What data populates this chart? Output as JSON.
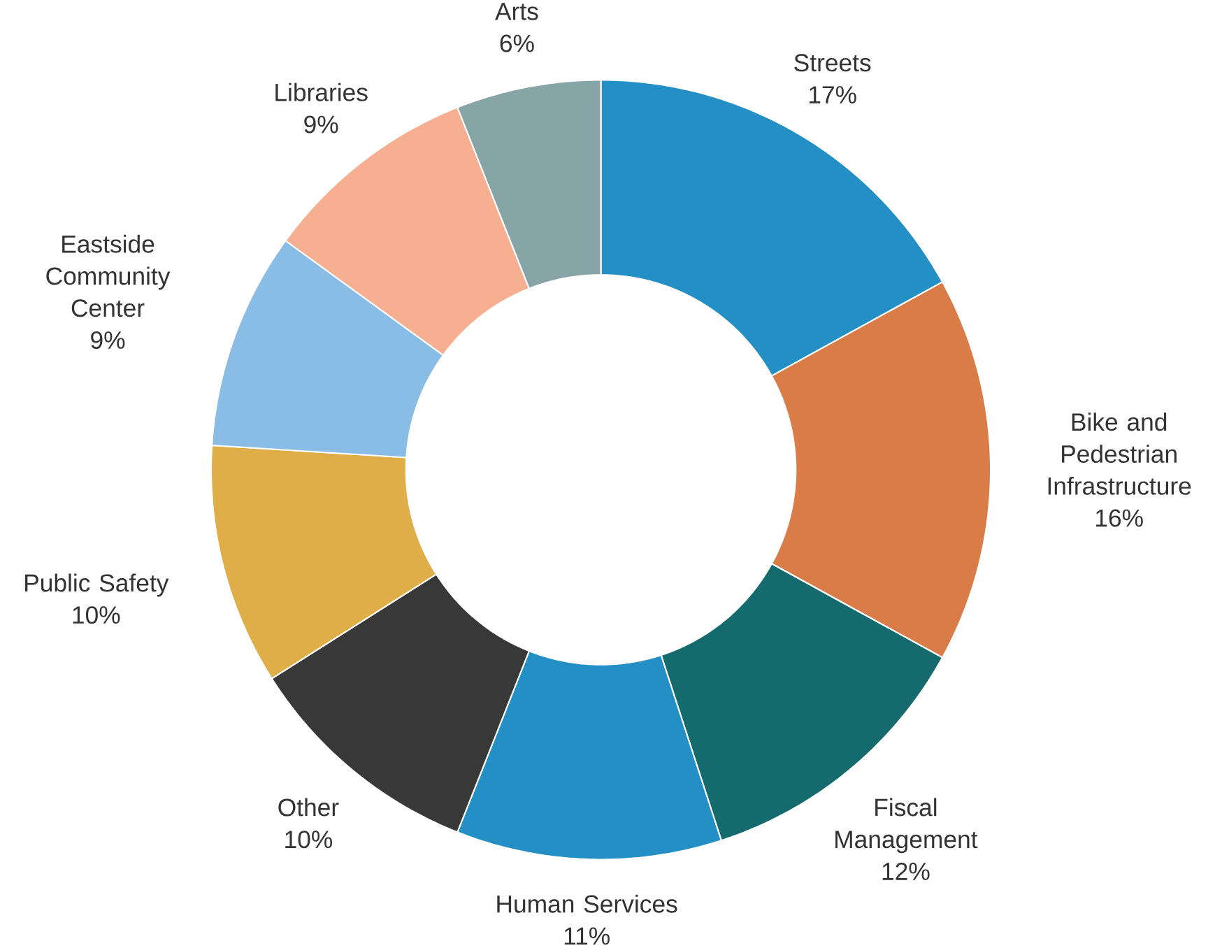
{
  "chart_data": {
    "type": "donut",
    "categories": [
      "Streets",
      "Bike and Pedestrian Infrastructure",
      "Fiscal Management",
      "Human Services",
      "Other",
      "Public Safety",
      "Eastside Community Center",
      "Libraries",
      "Arts"
    ],
    "values": [
      17,
      16,
      12,
      11,
      10,
      10,
      9,
      9,
      6
    ],
    "value_labels": [
      "17%",
      "16%",
      "12%",
      "11%",
      "10%",
      "10%",
      "9%",
      "9%",
      "6%"
    ],
    "colors": [
      "#238fc4",
      "#d97c47",
      "#146a6d",
      "#238fc4",
      "#383838",
      "#e0ae48",
      "#8abde6",
      "#f7af92",
      "#87a4a6"
    ]
  }
}
